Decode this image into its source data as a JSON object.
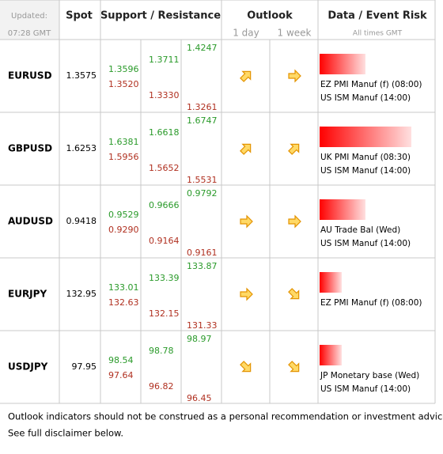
{
  "header": {
    "updated_label": "Updated:",
    "updated_time": "07:28 GMT",
    "spot": "Spot",
    "support_resistance": "Support / Resistance",
    "outlook": "Outlook",
    "outlook_1day": "1 day",
    "outlook_1week": "1 week",
    "data_event_risk": "Data / Event Risk",
    "times_note": "All times GMT"
  },
  "table": {
    "rows": [
      {
        "pair": "EURUSD",
        "spot": "1.3575",
        "inner": [
          "1.3596",
          "1.3520"
        ],
        "middle": [
          "1.3711",
          "1.3330"
        ],
        "outer": [
          "1.4247",
          "1.3261"
        ],
        "events": [
          "EZ PMI Manuf (f) (08:00)",
          "US ISM Manuf (14:00)"
        ]
      },
      {
        "pair": "GBPUSD",
        "spot": "1.6253",
        "inner": [
          "1.6381",
          "1.5956"
        ],
        "middle": [
          "1.6618",
          "1.5652"
        ],
        "outer": [
          "1.6747",
          "1.5531"
        ],
        "events": [
          "UK PMI Manuf (08:30)",
          "US ISM Manuf (14:00)"
        ]
      },
      {
        "pair": "AUDUSD",
        "spot": "0.9418",
        "inner": [
          "0.9529",
          "0.9290"
        ],
        "middle": [
          "0.9666",
          "0.9164"
        ],
        "outer": [
          "0.9792",
          "0.9161"
        ],
        "events": [
          "AU Trade Bal (Wed)",
          "US ISM Manuf (14:00)"
        ]
      },
      {
        "pair": "EURJPY",
        "spot": "132.95",
        "inner": [
          "133.01",
          "132.63"
        ],
        "middle": [
          "133.39",
          "132.15"
        ],
        "outer": [
          "133.87",
          "131.33"
        ],
        "events": [
          "EZ PMI Manuf (f) (08:00)"
        ]
      },
      {
        "pair": "USDJPY",
        "spot": "97.95",
        "inner": [
          "98.54",
          "97.64"
        ],
        "middle": [
          "98.78",
          "96.82"
        ],
        "outer": [
          "98.97",
          "96.45"
        ],
        "events": [
          "JP Monetary base (Wed)",
          "US ISM Manuf (14:00)"
        ]
      }
    ]
  },
  "footer": {
    "line1": "Outlook indicators should not be construed as a personal recommendation or investment advice.",
    "line2": "See full disclaimer below."
  }
}
